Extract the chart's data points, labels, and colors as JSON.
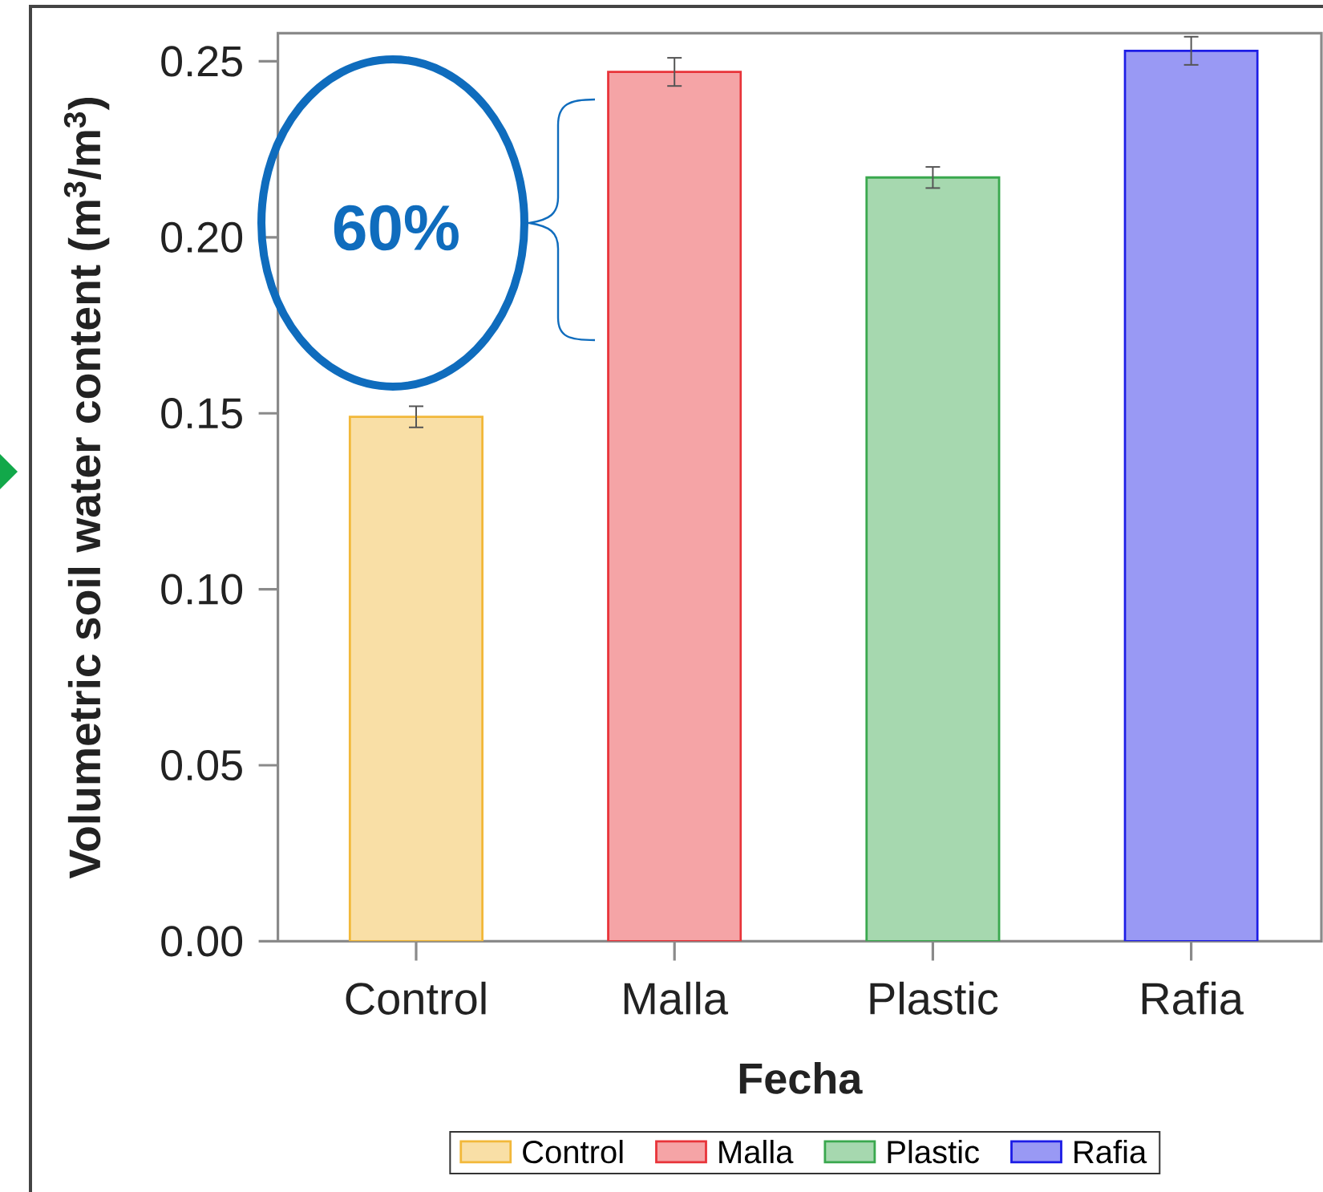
{
  "chart_data": {
    "type": "bar",
    "categories": [
      "Control",
      "Malla",
      "Plastic",
      "Rafia"
    ],
    "series": [
      {
        "name": "Control",
        "color": "#f2b83a",
        "values": [
          0.149,
          null,
          null,
          null
        ],
        "errors": [
          0.003,
          null,
          null,
          null
        ]
      },
      {
        "name": "Malla",
        "color": "#e8343a",
        "values": [
          null,
          0.247,
          null,
          null
        ],
        "errors": [
          null,
          0.004,
          null,
          null
        ]
      },
      {
        "name": "Plastic",
        "color": "#3aa84e",
        "values": [
          null,
          null,
          0.217,
          null
        ],
        "errors": [
          null,
          null,
          0.003,
          null
        ]
      },
      {
        "name": "Rafia",
        "color": "#1c1ce6",
        "values": [
          null,
          null,
          null,
          0.253
        ],
        "errors": [
          null,
          null,
          null,
          0.004
        ]
      }
    ],
    "xlabel": "Fecha",
    "ylabel": "Volumetric soil water content (m$^{3}$/m$^{3}$)",
    "ylim": [
      0,
      0.258
    ],
    "yticks": [
      {
        "value": 0,
        "label": "0.00"
      },
      0.05,
      {
        "value": 0.1,
        "label": "0.10"
      },
      0.15,
      {
        "value": 0.2,
        "label": "0.20"
      },
      0.25
    ],
    "legend": "bottom",
    "annotations": [
      "60%"
    ]
  }
}
